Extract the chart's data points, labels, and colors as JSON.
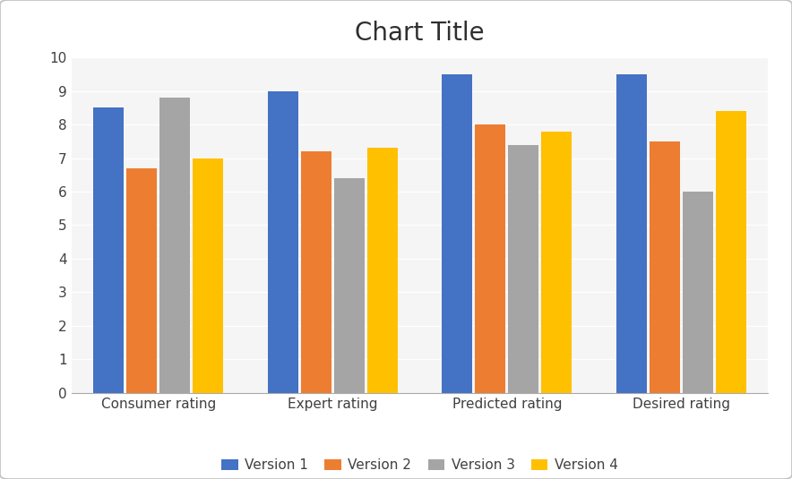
{
  "title": "Chart Title",
  "categories": [
    "Consumer rating",
    "Expert rating",
    "Predicted rating",
    "Desired rating"
  ],
  "series": {
    "Version 1": [
      8.5,
      9.0,
      9.5,
      9.5
    ],
    "Version 2": [
      6.7,
      7.2,
      8.0,
      7.5
    ],
    "Version 3": [
      8.8,
      6.4,
      7.4,
      6.0
    ],
    "Version 4": [
      7.0,
      7.3,
      7.8,
      8.4
    ]
  },
  "colors": {
    "Version 1": "#4472C4",
    "Version 2": "#ED7D31",
    "Version 3": "#A5A5A5",
    "Version 4": "#FFC000"
  },
  "ylim": [
    0,
    10
  ],
  "yticks": [
    0,
    1,
    2,
    3,
    4,
    5,
    6,
    7,
    8,
    9,
    10
  ],
  "title_fontsize": 20,
  "tick_fontsize": 11,
  "legend_fontsize": 11,
  "background_color": "#FFFFFF",
  "plot_bg_color": "#F2F2F2",
  "grid_color": "#FFFFFF",
  "border_color": "#C0C0C0",
  "outer_bg_color": "#F2F2F2"
}
